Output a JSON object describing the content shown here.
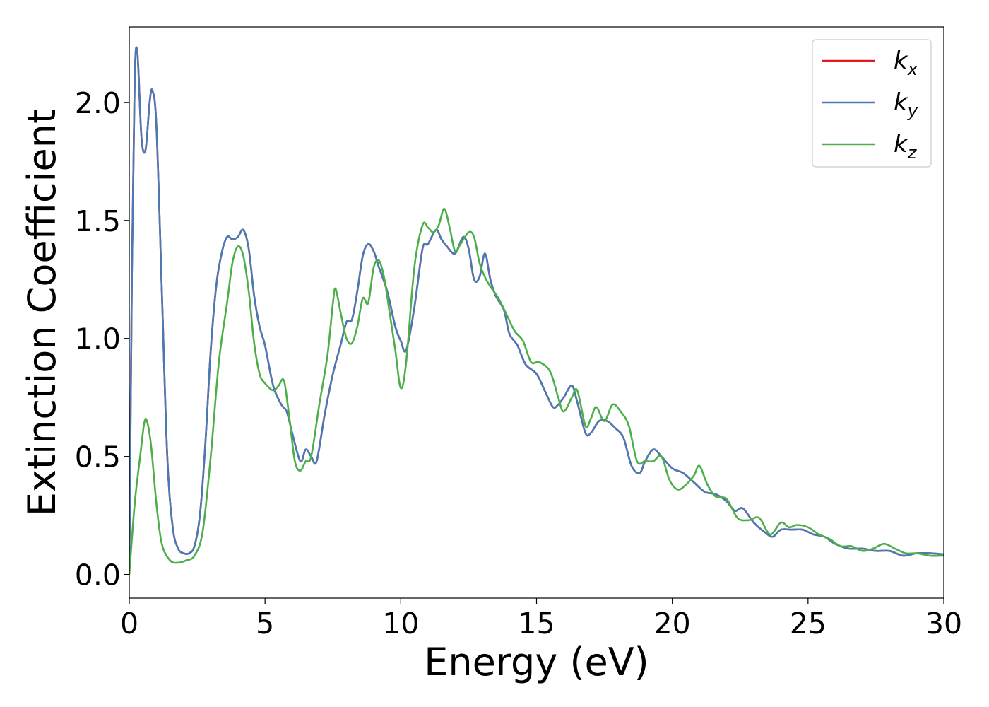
{
  "chart_data": {
    "type": "line",
    "title": "",
    "xlabel": "Energy (eV)",
    "ylabel": "Extinction Coefficient",
    "xlim": [
      0,
      30
    ],
    "ylim": [
      -0.1,
      2.32
    ],
    "xticks": [
      0,
      5,
      10,
      15,
      20,
      25,
      30
    ],
    "xtick_labels": [
      "0",
      "5",
      "10",
      "15",
      "20",
      "25",
      "30"
    ],
    "yticks": [
      0.0,
      0.5,
      1.0,
      1.5,
      2.0
    ],
    "ytick_labels": [
      "0.0",
      "0.5",
      "1.0",
      "1.5",
      "2.0"
    ],
    "grid": false,
    "legend_position": "top-right",
    "series": [
      {
        "name": "k_x",
        "legend_base": "k",
        "legend_sub": "x",
        "color": "#e41a1c",
        "x": [
          0,
          0.1,
          0.2,
          0.3,
          0.45,
          0.6,
          0.75,
          0.85,
          1.0,
          1.2,
          1.4,
          1.6,
          1.8,
          2.0,
          2.2,
          2.4,
          2.6,
          2.8,
          3.0,
          3.2,
          3.4,
          3.6,
          3.8,
          4.0,
          4.2,
          4.4,
          4.6,
          4.8,
          5.0,
          5.3,
          5.6,
          5.8,
          6.0,
          6.3,
          6.5,
          6.7,
          6.9,
          7.2,
          7.5,
          7.8,
          8.0,
          8.2,
          8.4,
          8.6,
          8.8,
          9.0,
          9.2,
          9.5,
          9.8,
          10.0,
          10.2,
          10.5,
          10.8,
          11.0,
          11.3,
          11.5,
          11.7,
          12.0,
          12.3,
          12.5,
          12.7,
          12.9,
          13.1,
          13.3,
          13.5,
          13.8,
          14.0,
          14.3,
          14.6,
          15.0,
          15.3,
          15.6,
          15.8,
          16.0,
          16.3,
          16.5,
          16.8,
          17.0,
          17.3,
          17.6,
          17.9,
          18.2,
          18.5,
          18.8,
          19.0,
          19.3,
          19.6,
          20.0,
          20.4,
          20.8,
          21.2,
          21.6,
          22.0,
          22.3,
          22.6,
          23.0,
          23.4,
          23.7,
          24.0,
          24.4,
          24.8,
          25.2,
          25.6,
          26.0,
          26.5,
          27.0,
          27.5,
          28.0,
          28.5,
          29.0,
          29.5,
          30.0
        ],
        "y": [
          0.0,
          1.3,
          2.1,
          2.21,
          1.85,
          1.8,
          2.0,
          2.05,
          1.9,
          1.2,
          0.5,
          0.2,
          0.11,
          0.09,
          0.09,
          0.12,
          0.25,
          0.55,
          0.95,
          1.22,
          1.36,
          1.43,
          1.42,
          1.43,
          1.46,
          1.38,
          1.18,
          1.05,
          0.97,
          0.8,
          0.72,
          0.69,
          0.6,
          0.48,
          0.53,
          0.5,
          0.48,
          0.68,
          0.85,
          0.98,
          1.07,
          1.08,
          1.2,
          1.35,
          1.4,
          1.37,
          1.3,
          1.2,
          1.05,
          0.99,
          0.95,
          1.13,
          1.38,
          1.4,
          1.46,
          1.42,
          1.39,
          1.36,
          1.43,
          1.38,
          1.25,
          1.26,
          1.36,
          1.25,
          1.18,
          1.12,
          1.02,
          0.97,
          0.89,
          0.85,
          0.78,
          0.71,
          0.72,
          0.75,
          0.8,
          0.73,
          0.6,
          0.6,
          0.65,
          0.65,
          0.62,
          0.58,
          0.46,
          0.43,
          0.48,
          0.53,
          0.5,
          0.45,
          0.43,
          0.39,
          0.35,
          0.34,
          0.31,
          0.27,
          0.28,
          0.22,
          0.18,
          0.16,
          0.19,
          0.19,
          0.19,
          0.17,
          0.16,
          0.13,
          0.11,
          0.11,
          0.1,
          0.1,
          0.08,
          0.09,
          0.09,
          0.085
        ]
      },
      {
        "name": "k_y",
        "legend_base": "k",
        "legend_sub": "y",
        "color": "#4a7ab5",
        "x": [
          0,
          0.1,
          0.2,
          0.3,
          0.45,
          0.6,
          0.75,
          0.85,
          1.0,
          1.2,
          1.4,
          1.6,
          1.8,
          2.0,
          2.2,
          2.4,
          2.6,
          2.8,
          3.0,
          3.2,
          3.4,
          3.6,
          3.8,
          4.0,
          4.2,
          4.4,
          4.6,
          4.8,
          5.0,
          5.3,
          5.6,
          5.8,
          6.0,
          6.3,
          6.5,
          6.7,
          6.9,
          7.2,
          7.5,
          7.8,
          8.0,
          8.2,
          8.4,
          8.6,
          8.8,
          9.0,
          9.2,
          9.5,
          9.8,
          10.0,
          10.2,
          10.5,
          10.8,
          11.0,
          11.3,
          11.5,
          11.7,
          12.0,
          12.3,
          12.5,
          12.7,
          12.9,
          13.1,
          13.3,
          13.5,
          13.8,
          14.0,
          14.3,
          14.6,
          15.0,
          15.3,
          15.6,
          15.8,
          16.0,
          16.3,
          16.5,
          16.8,
          17.0,
          17.3,
          17.6,
          17.9,
          18.2,
          18.5,
          18.8,
          19.0,
          19.3,
          19.6,
          20.0,
          20.4,
          20.8,
          21.2,
          21.6,
          22.0,
          22.3,
          22.6,
          23.0,
          23.4,
          23.7,
          24.0,
          24.4,
          24.8,
          25.2,
          25.6,
          26.0,
          26.5,
          27.0,
          27.5,
          28.0,
          28.5,
          29.0,
          29.5,
          30.0
        ],
        "y": [
          0.0,
          1.3,
          2.1,
          2.21,
          1.85,
          1.8,
          2.0,
          2.05,
          1.9,
          1.2,
          0.5,
          0.2,
          0.11,
          0.09,
          0.09,
          0.12,
          0.25,
          0.55,
          0.95,
          1.22,
          1.36,
          1.43,
          1.42,
          1.43,
          1.46,
          1.38,
          1.18,
          1.05,
          0.97,
          0.8,
          0.72,
          0.69,
          0.6,
          0.48,
          0.53,
          0.5,
          0.48,
          0.68,
          0.85,
          0.98,
          1.07,
          1.08,
          1.2,
          1.35,
          1.4,
          1.37,
          1.3,
          1.2,
          1.05,
          0.99,
          0.95,
          1.13,
          1.38,
          1.4,
          1.46,
          1.42,
          1.39,
          1.36,
          1.43,
          1.38,
          1.25,
          1.26,
          1.36,
          1.25,
          1.18,
          1.12,
          1.02,
          0.97,
          0.89,
          0.85,
          0.78,
          0.71,
          0.72,
          0.75,
          0.8,
          0.73,
          0.6,
          0.6,
          0.65,
          0.65,
          0.62,
          0.58,
          0.46,
          0.43,
          0.48,
          0.53,
          0.5,
          0.45,
          0.43,
          0.39,
          0.35,
          0.34,
          0.31,
          0.27,
          0.28,
          0.22,
          0.18,
          0.16,
          0.19,
          0.19,
          0.19,
          0.17,
          0.16,
          0.13,
          0.11,
          0.11,
          0.1,
          0.1,
          0.08,
          0.09,
          0.09,
          0.085
        ]
      },
      {
        "name": "k_z",
        "legend_base": "k",
        "legend_sub": "z",
        "color": "#4daf4a",
        "x": [
          0,
          0.2,
          0.4,
          0.55,
          0.65,
          0.8,
          1.0,
          1.2,
          1.5,
          1.8,
          2.1,
          2.4,
          2.7,
          3.0,
          3.3,
          3.6,
          3.8,
          4.0,
          4.2,
          4.4,
          4.6,
          4.8,
          5.0,
          5.3,
          5.5,
          5.7,
          5.9,
          6.1,
          6.3,
          6.5,
          6.7,
          7.0,
          7.3,
          7.5,
          7.6,
          7.8,
          8.0,
          8.2,
          8.4,
          8.6,
          8.8,
          9.0,
          9.2,
          9.4,
          9.6,
          9.8,
          10.0,
          10.2,
          10.5,
          10.8,
          11.0,
          11.2,
          11.4,
          11.6,
          11.8,
          12.0,
          12.2,
          12.5,
          12.7,
          12.9,
          13.1,
          13.3,
          13.6,
          13.9,
          14.2,
          14.5,
          14.8,
          15.1,
          15.5,
          15.8,
          16.0,
          16.3,
          16.5,
          16.8,
          17.0,
          17.2,
          17.5,
          17.8,
          18.1,
          18.4,
          18.7,
          19.0,
          19.3,
          19.6,
          19.9,
          20.2,
          20.5,
          20.8,
          21.0,
          21.3,
          21.6,
          22.0,
          22.4,
          22.8,
          23.2,
          23.6,
          24.0,
          24.3,
          24.6,
          25.0,
          25.4,
          25.8,
          26.2,
          26.6,
          27.0,
          27.4,
          27.8,
          28.2,
          28.6,
          29.0,
          29.5,
          30.0
        ],
        "y": [
          0.0,
          0.3,
          0.5,
          0.64,
          0.65,
          0.55,
          0.3,
          0.13,
          0.06,
          0.05,
          0.06,
          0.08,
          0.18,
          0.5,
          0.9,
          1.15,
          1.32,
          1.39,
          1.35,
          1.2,
          0.98,
          0.85,
          0.81,
          0.78,
          0.8,
          0.82,
          0.66,
          0.48,
          0.44,
          0.48,
          0.5,
          0.72,
          0.93,
          1.15,
          1.21,
          1.1,
          1.0,
          0.98,
          1.05,
          1.17,
          1.15,
          1.3,
          1.33,
          1.25,
          1.1,
          0.95,
          0.79,
          0.9,
          1.3,
          1.48,
          1.47,
          1.45,
          1.48,
          1.55,
          1.47,
          1.37,
          1.4,
          1.45,
          1.43,
          1.32,
          1.26,
          1.22,
          1.17,
          1.1,
          1.03,
          0.99,
          0.9,
          0.9,
          0.86,
          0.75,
          0.69,
          0.75,
          0.78,
          0.63,
          0.66,
          0.71,
          0.65,
          0.72,
          0.69,
          0.63,
          0.48,
          0.48,
          0.48,
          0.5,
          0.4,
          0.36,
          0.38,
          0.42,
          0.46,
          0.38,
          0.33,
          0.32,
          0.24,
          0.23,
          0.24,
          0.17,
          0.22,
          0.2,
          0.21,
          0.2,
          0.17,
          0.15,
          0.12,
          0.12,
          0.1,
          0.11,
          0.13,
          0.11,
          0.09,
          0.09,
          0.08,
          0.08
        ]
      }
    ]
  }
}
